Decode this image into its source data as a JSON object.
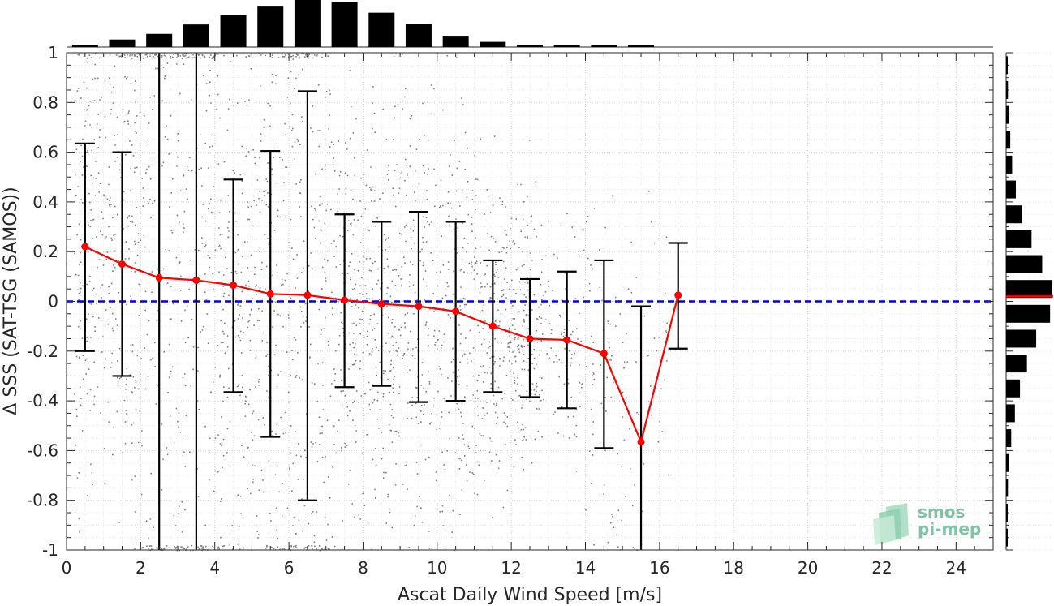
{
  "chart_data": {
    "type": "scatter",
    "title": "",
    "xlabel": "Ascat Daily Wind Speed [m/s]",
    "ylabel": "Δ SSS (SAT-TSG (SAMOS))",
    "xlim": [
      0,
      25
    ],
    "ylim": [
      -1,
      1
    ],
    "xticks": [
      "0",
      "2",
      "4",
      "6",
      "8",
      "10",
      "12",
      "14",
      "16",
      "18",
      "20",
      "22",
      "24"
    ],
    "yticks": [
      "-1",
      "-0.8",
      "-0.6",
      "-0.4",
      "-0.2",
      "0",
      "0.2",
      "0.4",
      "0.6",
      "0.8",
      "1"
    ],
    "grid": true,
    "reference_line": {
      "y": 0,
      "color": "#0000dd",
      "style": "dashed"
    },
    "scatter_color": "#808080",
    "mean_series": {
      "color": "#ff0000",
      "x": [
        0.5,
        1.5,
        2.5,
        3.5,
        4.5,
        5.5,
        6.5,
        7.5,
        8.5,
        9.5,
        10.5,
        11.5,
        12.5,
        13.5,
        14.5,
        15.5,
        16.5
      ],
      "y": [
        0.22,
        0.15,
        0.095,
        0.085,
        0.065,
        0.03,
        0.025,
        0.005,
        -0.01,
        -0.02,
        -0.04,
        -0.1,
        -0.15,
        -0.155,
        -0.21,
        -0.565,
        0.025
      ],
      "err_low": [
        -0.2,
        -0.3,
        -1.0,
        -1.0,
        -0.365,
        -0.545,
        -0.8,
        -0.345,
        -0.34,
        -0.405,
        -0.4,
        -0.365,
        -0.385,
        -0.43,
        -0.59,
        -1.0,
        -0.19
      ],
      "err_high": [
        0.635,
        0.6,
        1.0,
        1.0,
        0.49,
        0.605,
        0.845,
        0.35,
        0.32,
        0.36,
        0.32,
        0.165,
        0.09,
        0.12,
        0.165,
        -0.02,
        0.235
      ]
    },
    "histogram_x": {
      "bin_centers": [
        0.5,
        1.5,
        2.5,
        3.5,
        4.5,
        5.5,
        6.5,
        7.5,
        8.5,
        9.5,
        10.5,
        11.5,
        12.5,
        13.5,
        14.5,
        15.5,
        16.5
      ],
      "relative_counts": [
        0.05,
        0.16,
        0.28,
        0.48,
        0.68,
        0.86,
        1.0,
        0.96,
        0.73,
        0.49,
        0.24,
        0.11,
        0.04,
        0.02,
        0.015,
        0.01,
        0.0
      ]
    },
    "histogram_y": {
      "bin_centers": [
        -0.95,
        -0.85,
        -0.75,
        -0.65,
        -0.55,
        -0.45,
        -0.35,
        -0.25,
        -0.15,
        -0.05,
        0.05,
        0.15,
        0.25,
        0.35,
        0.45,
        0.55,
        0.65,
        0.75,
        0.85,
        0.95
      ],
      "relative_counts": [
        0.02,
        0.03,
        0.04,
        0.07,
        0.11,
        0.19,
        0.3,
        0.45,
        0.65,
        0.95,
        1.0,
        0.78,
        0.55,
        0.35,
        0.21,
        0.13,
        0.09,
        0.06,
        0.04,
        0.02
      ],
      "mean_line_y": 0.02,
      "mean_line_color": "#ff0000"
    }
  },
  "logo": {
    "line1": "smos",
    "line2": "pi-mep",
    "color": "#7fc2a4"
  }
}
